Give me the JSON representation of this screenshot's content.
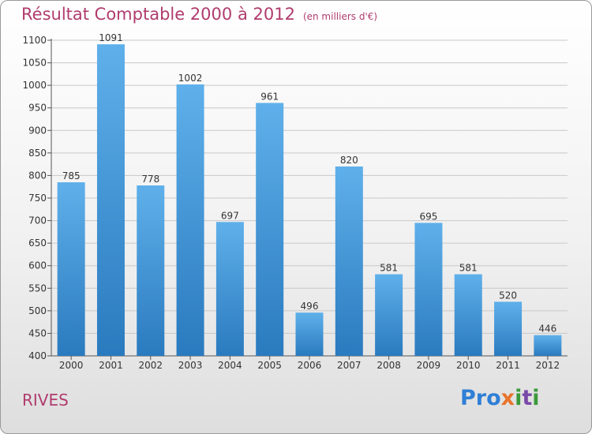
{
  "header": {
    "title": "Résultat Comptable 2000 à 2012",
    "unit": "(en milliers d'€)"
  },
  "footer": {
    "place": "RIVES",
    "logo_parts": [
      "Pro",
      "x",
      "i",
      "t",
      "i"
    ]
  },
  "colors": {
    "bar_top": "#5fb0ea",
    "bar_bottom": "#2a7abf",
    "title": "#b03c6e",
    "grid": "#c8c8c8"
  },
  "chart_data": {
    "type": "bar",
    "title": "Résultat Comptable 2000 à 2012",
    "categories": [
      "2000",
      "2001",
      "2002",
      "2003",
      "2004",
      "2005",
      "2006",
      "2007",
      "2008",
      "2009",
      "2010",
      "2011",
      "2012"
    ],
    "values": [
      785,
      1091,
      778,
      1002,
      697,
      961,
      496,
      820,
      581,
      695,
      581,
      520,
      446
    ],
    "ylim": [
      400,
      1100
    ],
    "yticks": [
      400,
      450,
      500,
      550,
      600,
      650,
      700,
      750,
      800,
      850,
      900,
      950,
      1000,
      1050,
      1100
    ],
    "grid": true,
    "legend": "none"
  }
}
